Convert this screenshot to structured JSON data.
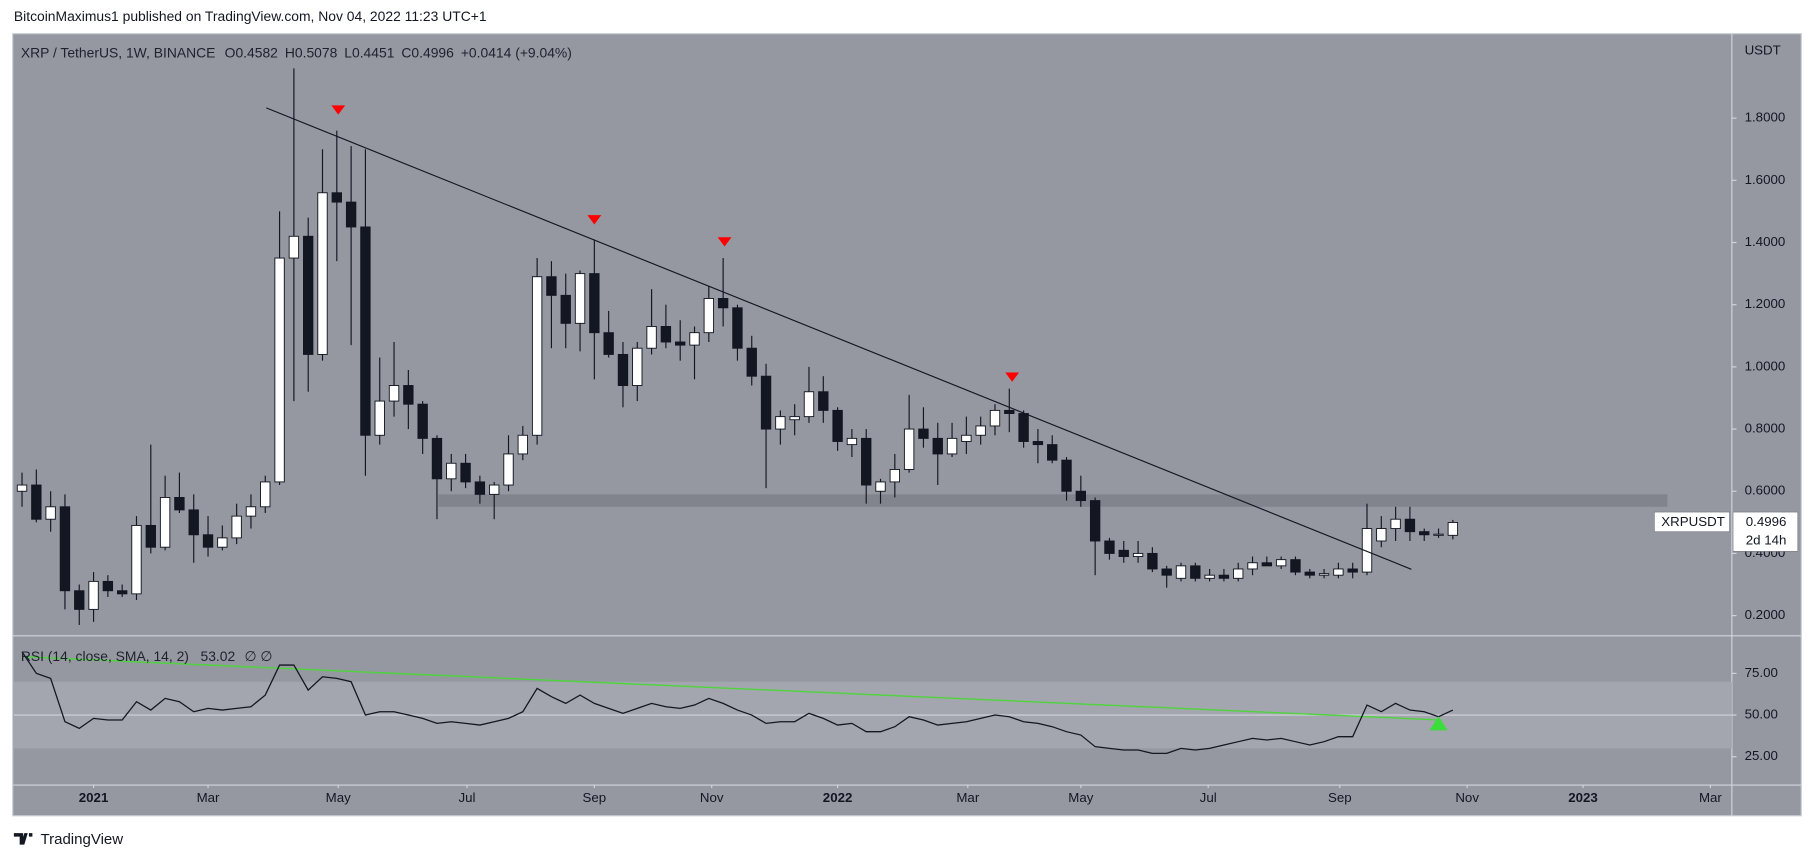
{
  "header": {
    "byline": "BitcoinMaximus1 published on TradingView.com, Nov 04, 2022 11:23 UTC+1",
    "footer": "TradingView"
  },
  "chart_data": [
    {
      "type": "candlestick",
      "title": "XRP / TetherUS, 1W, BINANCE",
      "ohlc_labels": [
        "O",
        "H",
        "L",
        "C"
      ],
      "change": "+0.0414 (+9.04%)",
      "currency": "USDT",
      "symbol_tag": "XRPUSDT",
      "countdown": "2d 14h",
      "up_color": "#ffffff",
      "down_color": "#131722",
      "wick_color": "#131722",
      "open": [
        0.6,
        0.62,
        0.51,
        0.55,
        0.28,
        0.22,
        0.31,
        0.28,
        0.27,
        0.49,
        0.42,
        0.58,
        0.54,
        0.46,
        0.42,
        0.45,
        0.52,
        0.55,
        0.63,
        1.35,
        1.42,
        1.04,
        1.56,
        1.53,
        1.45,
        0.78,
        0.89,
        0.94,
        0.88,
        0.77,
        0.64,
        0.69,
        0.63,
        0.59,
        0.62,
        0.72,
        0.78,
        1.29,
        1.23,
        1.14,
        1.3,
        1.11,
        1.04,
        0.94,
        1.06,
        1.13,
        1.08,
        1.07,
        1.11,
        1.22,
        1.19,
        1.06,
        0.97,
        0.8,
        0.83,
        0.84,
        0.92,
        0.86,
        0.75,
        0.77,
        0.6,
        0.63,
        0.67,
        0.8,
        0.77,
        0.72,
        0.76,
        0.78,
        0.81,
        0.86,
        0.85,
        0.76,
        0.75,
        0.7,
        0.6,
        0.57,
        0.44,
        0.41,
        0.39,
        0.4,
        0.35,
        0.32,
        0.36,
        0.32,
        0.33,
        0.32,
        0.35,
        0.37,
        0.36,
        0.38,
        0.34,
        0.33,
        0.33,
        0.35,
        0.34,
        0.44,
        0.48,
        0.51,
        0.47,
        0.46,
        0.4582
      ],
      "high": [
        0.66,
        0.67,
        0.6,
        0.59,
        0.3,
        0.34,
        0.33,
        0.3,
        0.52,
        0.75,
        0.65,
        0.66,
        0.59,
        0.52,
        0.49,
        0.56,
        0.59,
        0.65,
        1.5,
        1.96,
        1.48,
        1.7,
        1.76,
        1.71,
        1.7,
        1.03,
        1.08,
        0.99,
        0.89,
        0.78,
        0.72,
        0.72,
        0.65,
        0.63,
        0.78,
        0.81,
        1.35,
        1.34,
        1.3,
        1.31,
        1.41,
        1.18,
        1.08,
        1.08,
        1.25,
        1.2,
        1.15,
        1.13,
        1.26,
        1.35,
        1.2,
        1.1,
        1.01,
        0.86,
        0.88,
        1.0,
        0.97,
        0.87,
        0.8,
        0.8,
        0.64,
        0.72,
        0.91,
        0.87,
        0.82,
        0.82,
        0.84,
        0.84,
        0.88,
        0.93,
        0.86,
        0.8,
        0.78,
        0.71,
        0.65,
        0.58,
        0.45,
        0.44,
        0.44,
        0.42,
        0.36,
        0.37,
        0.37,
        0.35,
        0.35,
        0.37,
        0.39,
        0.39,
        0.39,
        0.39,
        0.35,
        0.35,
        0.37,
        0.37,
        0.56,
        0.52,
        0.55,
        0.55,
        0.48,
        0.48,
        0.5078
      ],
      "low": [
        0.55,
        0.5,
        0.47,
        0.22,
        0.17,
        0.18,
        0.26,
        0.26,
        0.25,
        0.4,
        0.41,
        0.53,
        0.37,
        0.39,
        0.41,
        0.43,
        0.48,
        0.53,
        0.62,
        0.89,
        0.92,
        1.02,
        1.34,
        1.07,
        0.65,
        0.75,
        0.84,
        0.8,
        0.72,
        0.51,
        0.6,
        0.61,
        0.56,
        0.51,
        0.6,
        0.7,
        0.75,
        1.06,
        1.06,
        1.05,
        0.96,
        1.03,
        0.87,
        0.89,
        1.04,
        1.06,
        1.02,
        0.96,
        1.08,
        1.13,
        1.02,
        0.94,
        0.61,
        0.75,
        0.78,
        0.82,
        0.82,
        0.73,
        0.71,
        0.56,
        0.56,
        0.58,
        0.66,
        0.74,
        0.62,
        0.71,
        0.72,
        0.75,
        0.78,
        0.79,
        0.74,
        0.69,
        0.69,
        0.57,
        0.55,
        0.33,
        0.38,
        0.37,
        0.37,
        0.34,
        0.29,
        0.31,
        0.31,
        0.31,
        0.31,
        0.31,
        0.33,
        0.36,
        0.35,
        0.33,
        0.32,
        0.32,
        0.32,
        0.32,
        0.33,
        0.42,
        0.44,
        0.44,
        0.44,
        0.45,
        0.4451
      ],
      "close": [
        0.62,
        0.51,
        0.55,
        0.28,
        0.22,
        0.31,
        0.28,
        0.27,
        0.49,
        0.42,
        0.58,
        0.54,
        0.46,
        0.42,
        0.45,
        0.52,
        0.55,
        0.63,
        1.35,
        1.42,
        1.04,
        1.56,
        1.53,
        1.45,
        0.78,
        0.89,
        0.94,
        0.88,
        0.77,
        0.64,
        0.69,
        0.63,
        0.59,
        0.62,
        0.72,
        0.78,
        1.29,
        1.23,
        1.14,
        1.3,
        1.11,
        1.04,
        0.94,
        1.06,
        1.13,
        1.08,
        1.07,
        1.11,
        1.22,
        1.19,
        1.06,
        0.97,
        0.8,
        0.84,
        0.84,
        0.92,
        0.86,
        0.76,
        0.77,
        0.62,
        0.63,
        0.67,
        0.8,
        0.77,
        0.72,
        0.77,
        0.78,
        0.81,
        0.86,
        0.85,
        0.76,
        0.75,
        0.7,
        0.6,
        0.57,
        0.44,
        0.4,
        0.39,
        0.4,
        0.35,
        0.33,
        0.36,
        0.32,
        0.33,
        0.32,
        0.35,
        0.37,
        0.36,
        0.38,
        0.34,
        0.33,
        0.335,
        0.35,
        0.34,
        0.48,
        0.48,
        0.51,
        0.47,
        0.46,
        0.462,
        0.4996
      ],
      "ylim": [
        0.1405,
        2.0679
      ],
      "yticks": [
        {
          "value": 0.2,
          "label": "0.2000"
        },
        {
          "value": 0.4,
          "label": "0.4000"
        },
        {
          "value": 0.6,
          "label": "0.6000"
        },
        {
          "value": 0.8,
          "label": "0.8000"
        },
        {
          "value": 1.0,
          "label": "1.0000"
        },
        {
          "value": 1.2,
          "label": "1.2000"
        },
        {
          "value": 1.4,
          "label": "1.4000"
        },
        {
          "value": 1.6,
          "label": "1.6000"
        },
        {
          "value": 1.8,
          "label": "1.8000"
        }
      ],
      "trendline": {
        "x1": 17.07,
        "y1": 1.833,
        "x2": 97.1,
        "y2": 0.349,
        "color": "#131722"
      },
      "zone": {
        "x1": 29.1,
        "x2": 115.0,
        "y1": 0.55,
        "y2": 0.59,
        "color": "#7b7e87"
      },
      "markers": [
        {
          "x": 22.1,
          "y": 1.826
        },
        {
          "x": 40.0,
          "y": 1.473
        },
        {
          "x": 49.1,
          "y": 1.402
        },
        {
          "x": 69.2,
          "y": 0.967
        }
      ],
      "marker_color": "#ff0000"
    },
    {
      "type": "line",
      "title": "RSI (14, close, SMA, 14, 2)",
      "extra": "∅ ∅",
      "color": "#131722",
      "values": [
        88,
        75,
        72,
        46,
        42,
        48,
        47,
        47,
        58,
        53,
        60,
        58,
        52,
        54,
        53,
        54,
        55,
        62,
        80,
        80,
        65,
        73,
        72,
        70,
        50,
        52,
        52,
        50,
        48,
        45,
        46,
        45,
        44,
        46,
        48,
        52,
        66,
        61,
        57,
        62,
        57,
        54,
        51,
        54,
        57,
        55,
        54,
        56,
        60,
        57,
        53,
        50,
        45,
        46,
        46,
        51,
        48,
        44,
        45,
        40,
        40,
        43,
        49,
        47,
        44,
        45,
        46,
        48,
        50,
        49,
        46,
        45,
        43,
        40,
        38,
        31,
        30,
        29,
        29,
        27,
        27,
        30,
        29,
        30,
        32,
        34,
        36,
        35,
        36,
        34,
        32,
        34,
        37,
        37,
        56,
        52,
        57,
        53,
        52,
        49,
        53.02
      ],
      "ylim": [
        8.3,
        96.5
      ],
      "yticks": [
        {
          "value": 25,
          "label": "25.00"
        },
        {
          "value": 50,
          "label": "50.00"
        },
        {
          "value": 75,
          "label": "75.00"
        }
      ],
      "band": [
        30,
        70
      ],
      "midline": 50,
      "trendline": {
        "x1": 0,
        "y1": 85,
        "x2": 99.2,
        "y2": 47,
        "color": "#4cd63a"
      },
      "marker": {
        "x": 99.0,
        "y": 45,
        "color": "#3ddc3d"
      },
      "xlim": [
        -0.65,
        119.5
      ],
      "xticks": [
        {
          "value": 5.0,
          "label": "2021"
        },
        {
          "value": 13.0,
          "label": "Mar"
        },
        {
          "value": 22.1,
          "label": "May"
        },
        {
          "value": 31.1,
          "label": "Jul"
        },
        {
          "value": 40.0,
          "label": "Sep"
        },
        {
          "value": 48.2,
          "label": "Nov"
        },
        {
          "value": 57.0,
          "label": "2022"
        },
        {
          "value": 66.1,
          "label": "Mar"
        },
        {
          "value": 74.0,
          "label": "May"
        },
        {
          "value": 82.9,
          "label": "Jul"
        },
        {
          "value": 92.1,
          "label": "Sep"
        },
        {
          "value": 101.0,
          "label": "Nov"
        },
        {
          "value": 109.1,
          "label": "2023"
        },
        {
          "value": 118.0,
          "label": "Mar"
        }
      ]
    }
  ]
}
